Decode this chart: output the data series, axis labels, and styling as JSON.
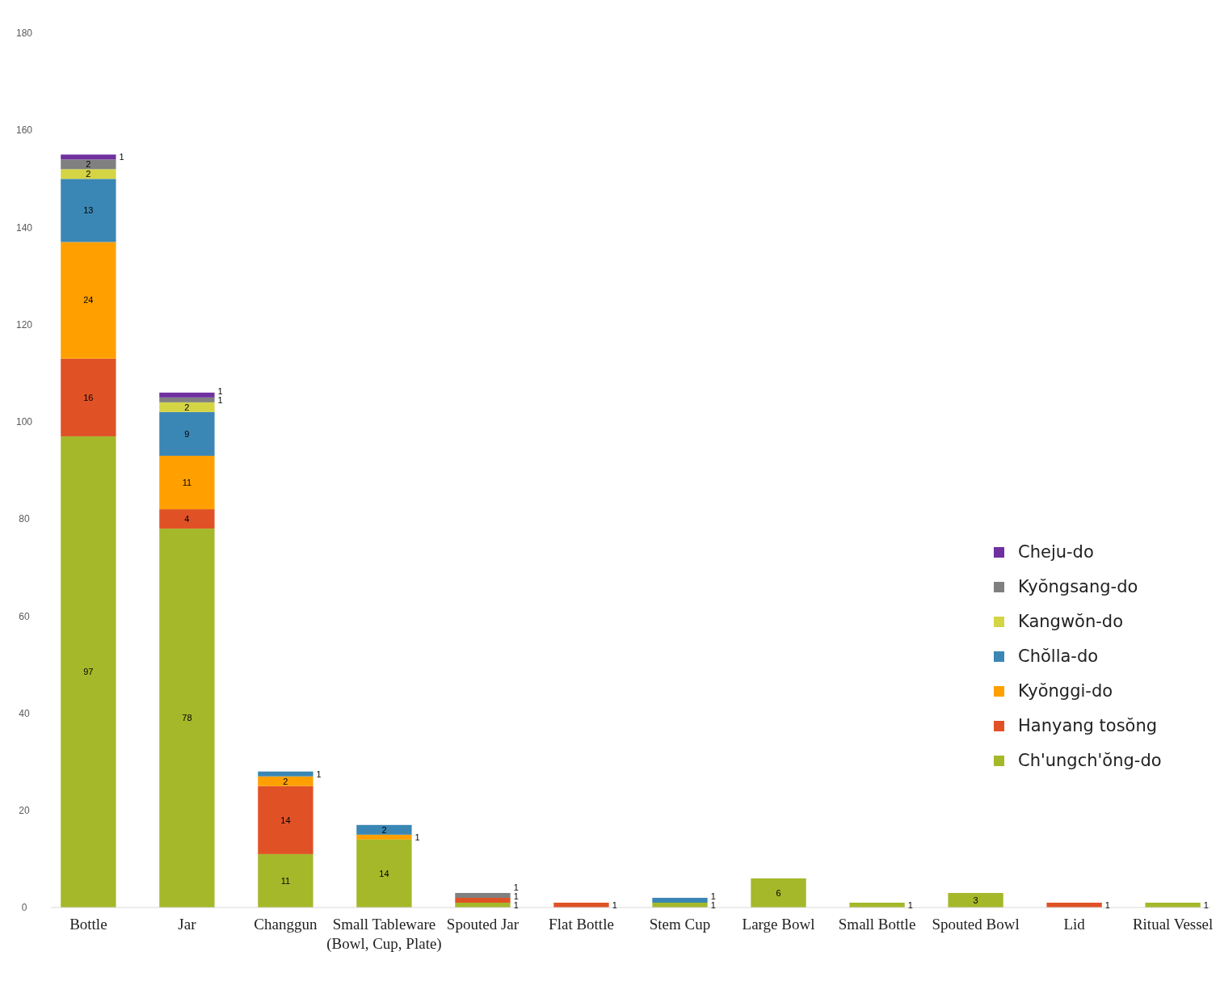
{
  "chart_data": {
    "type": "bar",
    "stacked": true,
    "data_labels": true,
    "legend": "right",
    "grid": false,
    "categories": [
      "Bottle",
      "Jar",
      "Changgun",
      "Small Tableware (Bowl, Cup, Plate)",
      "Spouted Jar",
      "Flat Bottle",
      "Stem Cup",
      "Large Bowl",
      "Small Bottle",
      "Spouted Bowl",
      "Lid",
      "Ritual Vessel"
    ],
    "ylim": [
      0,
      180
    ],
    "yticks": [
      0,
      20,
      40,
      60,
      80,
      100,
      120,
      140,
      160,
      180
    ],
    "series": [
      {
        "name": "Ch'ungch'ŏng-do",
        "color": "#a5b82a",
        "values": [
          97,
          78,
          11,
          14,
          1,
          null,
          1,
          6,
          1,
          3,
          null,
          1
        ]
      },
      {
        "name": "Hanyang tosŏng",
        "color": "#e05226",
        "values": [
          16,
          4,
          14,
          null,
          1,
          1,
          null,
          null,
          null,
          null,
          1,
          null
        ]
      },
      {
        "name": "Kyŏnggi-do",
        "color": "#ffa000",
        "values": [
          24,
          11,
          2,
          1,
          null,
          null,
          null,
          null,
          null,
          null,
          null,
          null
        ]
      },
      {
        "name": "Chŏlla-do",
        "color": "#3a87b5",
        "values": [
          13,
          9,
          1,
          2,
          null,
          null,
          1,
          null,
          null,
          null,
          null,
          null
        ]
      },
      {
        "name": "Kangwŏn-do",
        "color": "#d4d445",
        "values": [
          2,
          2,
          null,
          null,
          null,
          null,
          null,
          null,
          null,
          null,
          null,
          null
        ]
      },
      {
        "name": "Kyŏngsang-do",
        "color": "#808080",
        "values": [
          2,
          1,
          null,
          null,
          1,
          null,
          null,
          null,
          null,
          null,
          null,
          null
        ]
      },
      {
        "name": "Cheju-do",
        "color": "#7030a0",
        "values": [
          1,
          1,
          null,
          null,
          null,
          null,
          null,
          null,
          null,
          null,
          null,
          null
        ]
      }
    ]
  }
}
